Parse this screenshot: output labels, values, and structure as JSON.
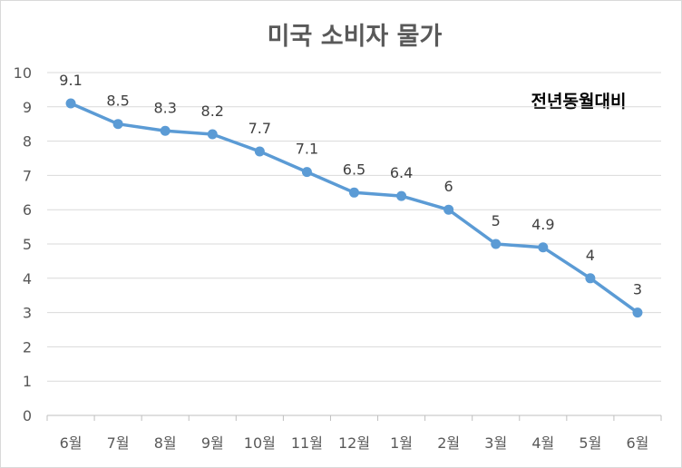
{
  "chart_data": {
    "type": "line",
    "title": "미국 소비자 물가",
    "annotation": "전년동월대비",
    "xlabel": "",
    "ylabel": "",
    "ylim": [
      0,
      10
    ],
    "yticks": [
      0,
      1,
      2,
      3,
      4,
      5,
      6,
      7,
      8,
      9,
      10
    ],
    "grid": true,
    "categories": [
      "6월",
      "7월",
      "8월",
      "9월",
      "10월",
      "11월",
      "12월",
      "1월",
      "2월",
      "3월",
      "4월",
      "5월",
      "6월"
    ],
    "series": [
      {
        "name": "전년동월대비",
        "color": "#5b9bd5",
        "values": [
          9.1,
          8.5,
          8.3,
          8.2,
          7.7,
          7.1,
          6.5,
          6.4,
          6,
          5,
          4.9,
          4,
          3
        ]
      }
    ]
  }
}
